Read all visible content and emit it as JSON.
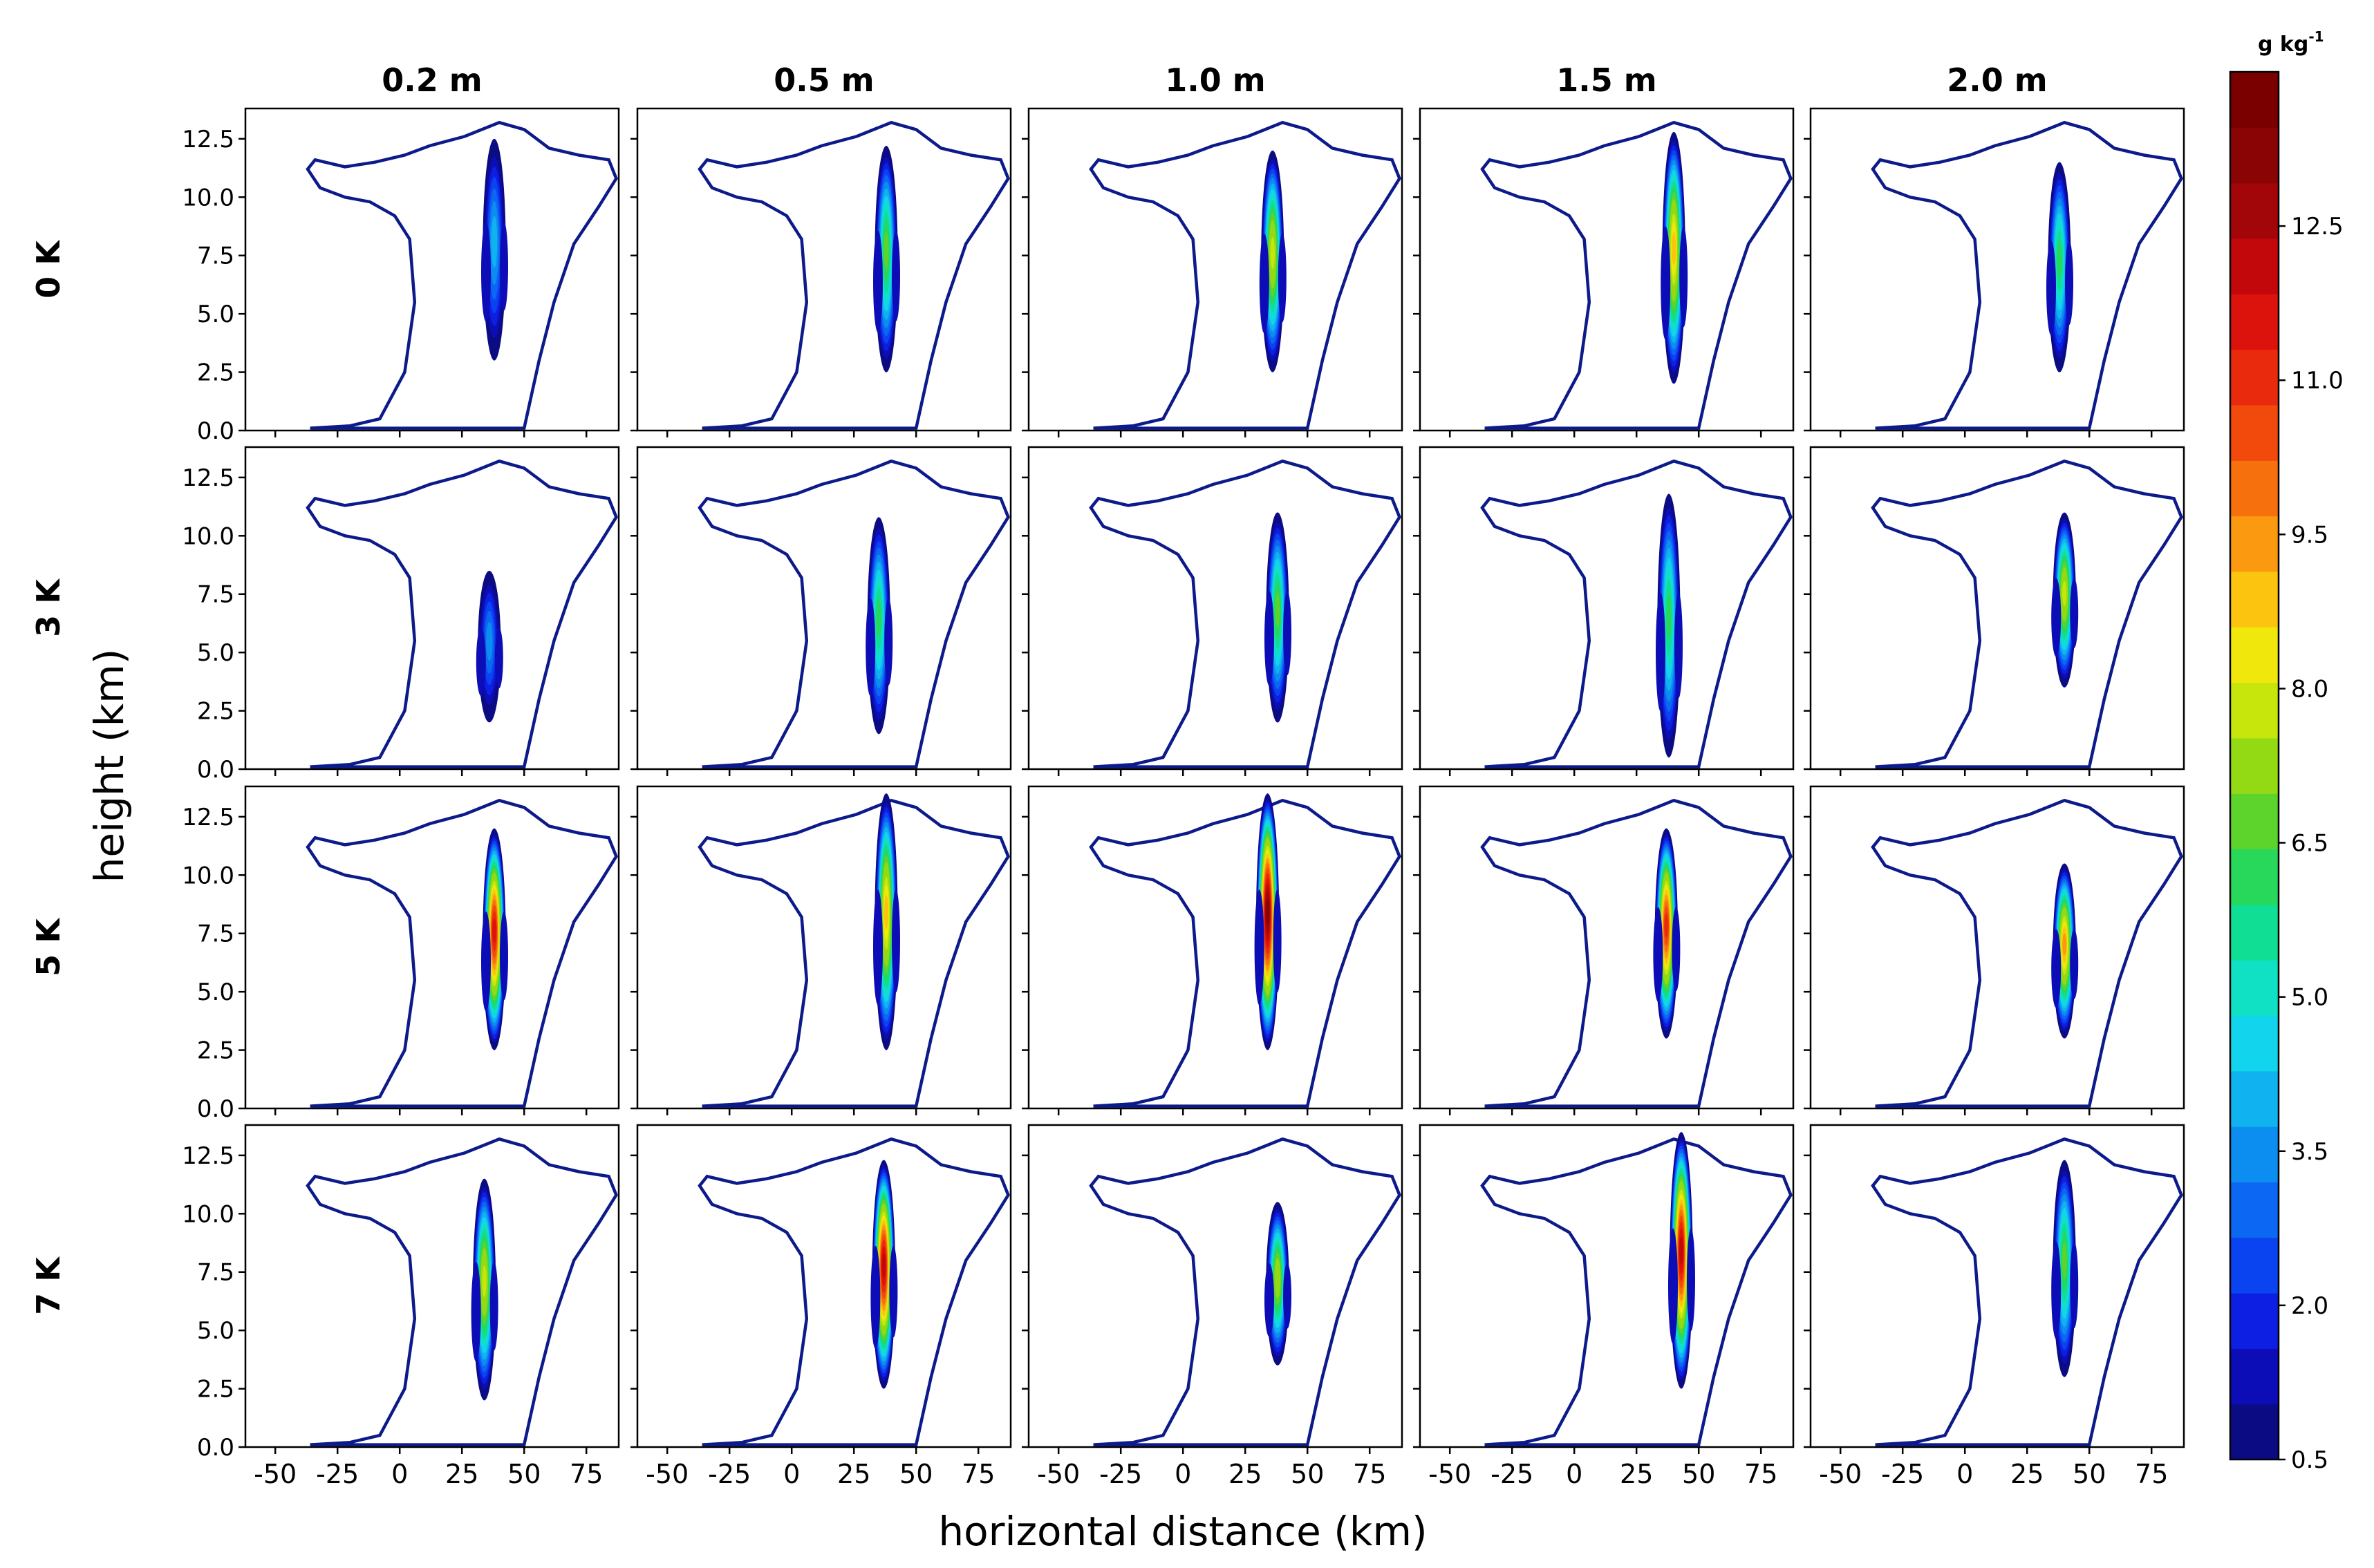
{
  "chart_data": {
    "type": "heatmap",
    "description_kind": "5x4 grid of filled contour panels with a single outline contour",
    "columns": [
      "0.2 m",
      "0.5 m",
      "1.0 m",
      "1.5 m",
      "2.0 m"
    ],
    "rows": [
      "0 K",
      "3 K",
      "5 K",
      "7 K"
    ],
    "xlabel": "horizontal distance (km)",
    "ylabel": "height (km)",
    "xlim": [
      -62,
      88
    ],
    "ylim": [
      0,
      13.8
    ],
    "xticks": [
      "-50",
      "-25",
      "0",
      "25",
      "50",
      "75"
    ],
    "yticks": [
      "0.0",
      "2.5",
      "5.0",
      "7.5",
      "10.0",
      "12.5"
    ],
    "colorbar": {
      "unit": "g kg",
      "unit_exp": "-1",
      "range": [
        0.5,
        14.0
      ],
      "step": 0.5,
      "tick_labels": [
        "0.5",
        "2.0",
        "3.5",
        "5.0",
        "6.5",
        "8.0",
        "9.5",
        "11.0",
        "12.5"
      ],
      "colors": [
        "#0b0b84",
        "#0d0db8",
        "#0c1fe3",
        "#0a43f0",
        "#0c67f3",
        "#0c8ef0",
        "#10b2ef",
        "#12d4ec",
        "#10e0c4",
        "#10de94",
        "#27d85a",
        "#5cd42c",
        "#93da14",
        "#c6e60c",
        "#f0e80c",
        "#fcc40e",
        "#fb9a10",
        "#f7700e",
        "#f24a0c",
        "#ea2a0c",
        "#dc120c",
        "#c2080a",
        "#a30608",
        "#8a0406",
        "#7a0000"
      ]
    },
    "panels": [
      {
        "row": "0 K",
        "col": "0.2 m",
        "core_x": 38,
        "core_top": 12.5,
        "core_bottom": 3.0,
        "max": 4.5
      },
      {
        "row": "0 K",
        "col": "0.5 m",
        "core_x": 38,
        "core_top": 12.2,
        "core_bottom": 2.5,
        "max": 7.0
      },
      {
        "row": "0 K",
        "col": "1.0 m",
        "core_x": 36,
        "core_top": 12.0,
        "core_bottom": 2.5,
        "max": 8.5
      },
      {
        "row": "0 K",
        "col": "1.5 m",
        "core_x": 40,
        "core_top": 12.8,
        "core_bottom": 2.0,
        "max": 9.5
      },
      {
        "row": "0 K",
        "col": "2.0 m",
        "core_x": 38,
        "core_top": 11.5,
        "core_bottom": 2.5,
        "max": 6.5
      },
      {
        "row": "3 K",
        "col": "0.2 m",
        "core_x": 36,
        "core_top": 8.5,
        "core_bottom": 2.0,
        "max": 4.0
      },
      {
        "row": "3 K",
        "col": "0.5 m",
        "core_x": 35,
        "core_top": 10.8,
        "core_bottom": 1.5,
        "max": 6.5
      },
      {
        "row": "3 K",
        "col": "1.0 m",
        "core_x": 38,
        "core_top": 11.0,
        "core_bottom": 2.0,
        "max": 7.0
      },
      {
        "row": "3 K",
        "col": "1.5 m",
        "core_x": 38,
        "core_top": 11.8,
        "core_bottom": 0.5,
        "max": 6.5
      },
      {
        "row": "3 K",
        "col": "2.0 m",
        "core_x": 40,
        "core_top": 11.0,
        "core_bottom": 3.5,
        "max": 8.5
      },
      {
        "row": "5 K",
        "col": "0.2 m",
        "core_x": 38,
        "core_top": 12.0,
        "core_bottom": 2.5,
        "max": 12.0
      },
      {
        "row": "5 K",
        "col": "0.5 m",
        "core_x": 38,
        "core_top": 13.5,
        "core_bottom": 2.5,
        "max": 9.5
      },
      {
        "row": "5 K",
        "col": "1.0 m",
        "core_x": 34,
        "core_top": 13.5,
        "core_bottom": 2.5,
        "max": 13.5
      },
      {
        "row": "5 K",
        "col": "1.5 m",
        "core_x": 37,
        "core_top": 12.0,
        "core_bottom": 3.0,
        "max": 11.5
      },
      {
        "row": "5 K",
        "col": "2.0 m",
        "core_x": 40,
        "core_top": 10.5,
        "core_bottom": 3.0,
        "max": 10.0
      },
      {
        "row": "7 K",
        "col": "0.2 m",
        "core_x": 34,
        "core_top": 11.5,
        "core_bottom": 2.0,
        "max": 8.5
      },
      {
        "row": "7 K",
        "col": "0.5 m",
        "core_x": 37,
        "core_top": 12.3,
        "core_bottom": 2.5,
        "max": 12.5
      },
      {
        "row": "7 K",
        "col": "1.0 m",
        "core_x": 38,
        "core_top": 10.5,
        "core_bottom": 3.5,
        "max": 8.0
      },
      {
        "row": "7 K",
        "col": "1.5 m",
        "core_x": 43,
        "core_top": 13.5,
        "core_bottom": 2.5,
        "max": 12.5
      },
      {
        "row": "7 K",
        "col": "2.0 m",
        "core_x": 40,
        "core_top": 12.3,
        "core_bottom": 3.0,
        "max": 7.0
      }
    ]
  }
}
